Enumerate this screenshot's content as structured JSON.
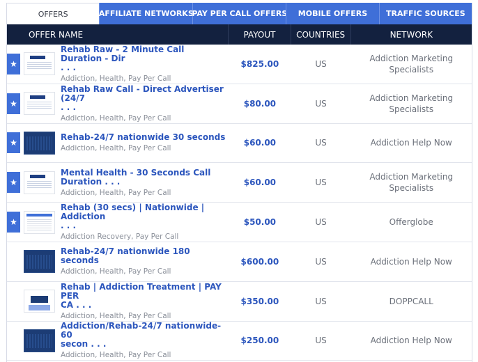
{
  "tabs": [
    {
      "label": "OFFERS",
      "active": true
    },
    {
      "label": "AFFILIATE NETWORKS",
      "active": false
    },
    {
      "label": "PAY PER CALL OFFERS",
      "active": false
    },
    {
      "label": "MOBILE OFFERS",
      "active": false
    },
    {
      "label": "TRAFFIC SOURCES",
      "active": false
    }
  ],
  "columns": {
    "offer_name": "OFFER NAME",
    "payout": "PAYOUT",
    "countries": "COUNTRIES",
    "network": "NETWORK"
  },
  "rows": [
    {
      "featured": true,
      "thumb": "light",
      "title": "Rehab Raw - 2 Minute Call Duration - Dir\n. . .",
      "tags": "Addiction, Health, Pay Per Call",
      "payout": "$825.00",
      "country": "US",
      "network": "Addiction Marketing Specialists"
    },
    {
      "featured": true,
      "thumb": "light",
      "title": "Rehab Raw Call - Direct Advertiser (24/7\n. . .",
      "tags": "Addiction, Health, Pay Per Call",
      "payout": "$80.00",
      "country": "US",
      "network": "Addiction Marketing Specialists"
    },
    {
      "featured": true,
      "thumb": "dark",
      "title": "Rehab-24/7 nationwide 30 seconds",
      "tags": "Addiction, Health, Pay Per Call",
      "payout": "$60.00",
      "country": "US",
      "network": "Addiction Help Now"
    },
    {
      "featured": true,
      "thumb": "light",
      "title": "Mental Health - 30 Seconds Call\nDuration . . .",
      "tags": "Addiction, Health, Pay Per Call",
      "payout": "$60.00",
      "country": "US",
      "network": "Addiction Marketing Specialists"
    },
    {
      "featured": true,
      "thumb": "doc",
      "title": "Rehab (30 secs) | Nationwide | Addiction\n. . .",
      "tags": "Addiction Recovery, Pay Per Call",
      "payout": "$50.00",
      "country": "US",
      "network": "Offerglobe"
    },
    {
      "featured": false,
      "thumb": "dark",
      "title": "Rehab-24/7 nationwide 180 seconds",
      "tags": "Addiction, Health, Pay Per Call",
      "payout": "$600.00",
      "country": "US",
      "network": "Addiction Help Now"
    },
    {
      "featured": false,
      "thumb": "mixed",
      "title": "Rehab | Addiction Treatment | PAY PER\nCA . . .",
      "tags": "Addiction, Health, Pay Per Call",
      "payout": "$350.00",
      "country": "US",
      "network": "DOPPCALL"
    },
    {
      "featured": false,
      "thumb": "dark",
      "title": "Addiction/Rehab-24/7 nationwide-60\nsecon . . .",
      "tags": "Addiction, Health, Pay Per Call",
      "payout": "$250.00",
      "country": "US",
      "network": "Addiction Help Now"
    }
  ],
  "colors": {
    "tab_blue": "#3f6fd8",
    "header_navy": "#13213f",
    "link_blue": "#2c56bd",
    "muted_text": "#8a8f99"
  },
  "icons": {
    "featured": "star-icon"
  }
}
